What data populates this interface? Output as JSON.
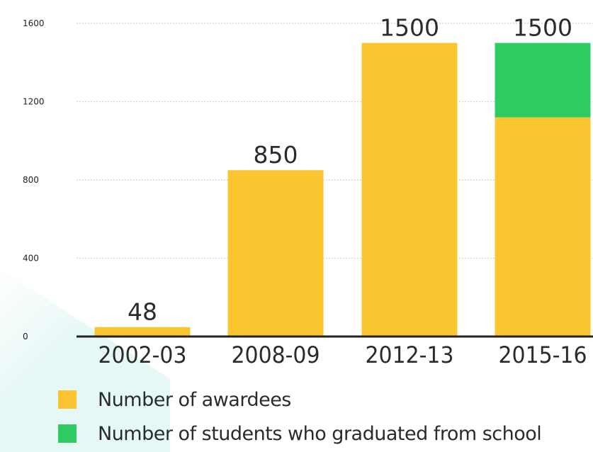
{
  "chart_data": {
    "type": "bar",
    "stacked": true,
    "categories": [
      "2002-03",
      "2008-09",
      "2012-13",
      "2015-16"
    ],
    "series": [
      {
        "name": "Number of awardees",
        "values": [
          48,
          850,
          1500,
          1120
        ],
        "color": "#fbc531"
      },
      {
        "name": "Number of students who graduated from school",
        "values": [
          0,
          0,
          0,
          380
        ],
        "color": "#2ecc63"
      }
    ],
    "data_labels": [
      "48",
      "850",
      "1500",
      "1500"
    ],
    "yticks": [
      "0",
      "400",
      "800",
      "1200",
      "1600"
    ],
    "ylim": [
      0,
      1600
    ],
    "grid": true,
    "legend_position": "bottom-left",
    "title": "",
    "xlabel": "",
    "ylabel": ""
  },
  "legend": {
    "items": [
      {
        "label": "Number of awardees",
        "color": "#fbc531"
      },
      {
        "label": "Number of students who graduated from school",
        "color": "#2ecc63"
      }
    ]
  }
}
